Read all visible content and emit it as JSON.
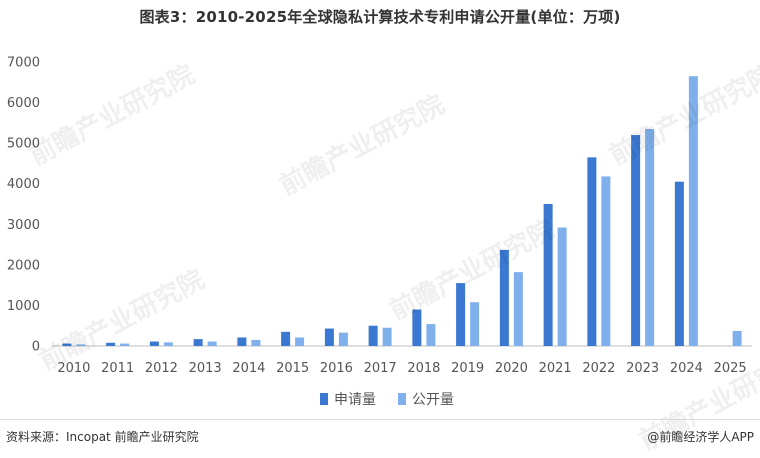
{
  "title": "图表3：2010-2025年全球隐私计算技术专利申请公开量(单位：万项)",
  "footer": {
    "source": "资料来源：Incopat 前瞻产业研究院",
    "brand": "@前瞻经济学人APP"
  },
  "watermark_text": "前瞻产业研究院",
  "colors": {
    "series1": "#3a78d1",
    "series2": "#7fb0eb",
    "grid": "#e6e6e6",
    "axis": "#bfbfbf"
  },
  "chart_data": {
    "type": "bar",
    "title": "图表3：2010-2025年全球隐私计算技术专利申请公开量(单位：万项)",
    "xlabel": "",
    "ylabel": "",
    "categories": [
      "2010",
      "2011",
      "2012",
      "2013",
      "2014",
      "2015",
      "2016",
      "2017",
      "2018",
      "2019",
      "2020",
      "2021",
      "2022",
      "2023",
      "2024",
      "2025"
    ],
    "series": [
      {
        "name": "申请量",
        "color": "#3a78d1",
        "values": [
          60,
          80,
          110,
          170,
          210,
          350,
          430,
          500,
          900,
          1550,
          2370,
          3500,
          4650,
          5200,
          4050,
          0
        ]
      },
      {
        "name": "公开量",
        "color": "#7fb0eb",
        "values": [
          40,
          60,
          90,
          110,
          150,
          210,
          330,
          450,
          540,
          1080,
          1820,
          2920,
          4180,
          5350,
          6650,
          370
        ]
      }
    ],
    "ylim": [
      0,
      7000
    ],
    "yticks": [
      0,
      1000,
      2000,
      3000,
      4000,
      5000,
      6000,
      7000
    ],
    "grid": false,
    "legend_position": "bottom"
  }
}
